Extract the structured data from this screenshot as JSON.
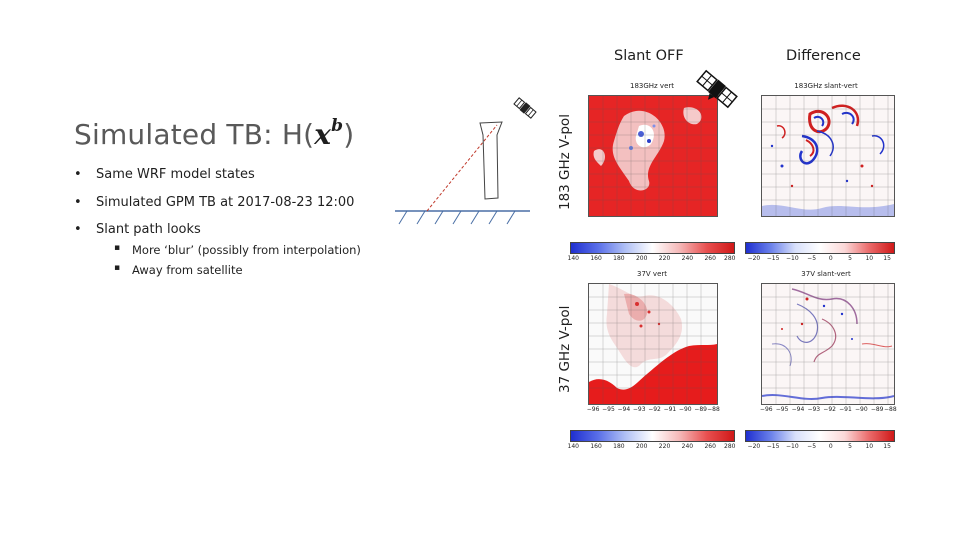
{
  "slide": {
    "title_prefix": "Simulated TB: H(",
    "title_math": "x",
    "title_sup": "b",
    "title_suffix": ")",
    "bullets": [
      {
        "marker": "•",
        "text": "Same WRF model states"
      },
      {
        "marker": "•",
        "text": "Simulated GPM TB at 2017-08-23 12:00"
      },
      {
        "marker": "•",
        "text": "Slant path looks"
      }
    ],
    "sub_bullets": [
      {
        "marker": "▪",
        "text": "More ‘blur’ (possibly from interpolation)"
      },
      {
        "marker": "▪",
        "text": "Away from satellite"
      }
    ]
  },
  "columns": {
    "left": "Slant OFF",
    "right": "Difference"
  },
  "rows": {
    "top": "183 GHz V-pol",
    "bottom": "37 GHz V-pol"
  },
  "panels": {
    "top_left_title": "183GHz vert",
    "top_right_title": "183GHz slant-vert",
    "bottom_left_title": "37V vert",
    "bottom_right_title": "37V slant-vert"
  },
  "colorbars": {
    "abs_ticks": [
      "140",
      "160",
      "180",
      "200",
      "220",
      "240",
      "260",
      "280"
    ],
    "diff_ticks": [
      "−20",
      "−15",
      "−10",
      "−5",
      "0",
      "5",
      "10",
      "15"
    ]
  },
  "lon_ticks": [
    "−96",
    "−95",
    "−94",
    "−93",
    "−92",
    "−91",
    "−90",
    "−89",
    "−88"
  ],
  "colors": {
    "warm": "#e41a1c",
    "cold": "#2233cc",
    "ground_line": "#4a6fa5",
    "slant_path": "#c0392b"
  }
}
